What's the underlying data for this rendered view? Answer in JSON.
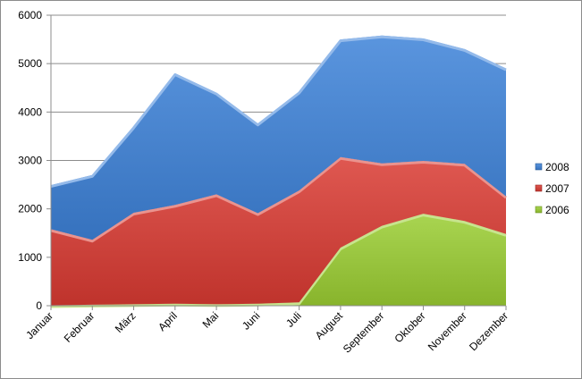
{
  "chart_data": {
    "type": "area",
    "stacked": true,
    "categories": [
      "Januar",
      "Februar",
      "März",
      "April",
      "Mai",
      "Juni",
      "Juli",
      "August",
      "September",
      "Oktober",
      "November",
      "Dezember"
    ],
    "series": [
      {
        "name": "2006",
        "color": "#9acd32",
        "values": [
          10,
          20,
          30,
          40,
          30,
          40,
          70,
          1200,
          1650,
          1900,
          1750,
          1480
        ]
      },
      {
        "name": "2007",
        "color": "#d93a32",
        "values": [
          1570,
          1340,
          1890,
          2040,
          2270,
          1870,
          2310,
          1870,
          1290,
          1090,
          1180,
          780
        ]
      },
      {
        "name": "2008",
        "color": "#3d82d8",
        "values": [
          910,
          1340,
          1780,
          2720,
          2100,
          1850,
          2040,
          2430,
          2640,
          2530,
          2370,
          2640
        ]
      }
    ],
    "ylim": [
      0,
      6000
    ],
    "yticks": [
      0,
      1000,
      2000,
      3000,
      4000,
      5000,
      6000
    ],
    "grid": true,
    "legend": {
      "position": "right",
      "order": [
        "2008",
        "2007",
        "2006"
      ]
    },
    "title": "",
    "xlabel": "",
    "ylabel": ""
  }
}
